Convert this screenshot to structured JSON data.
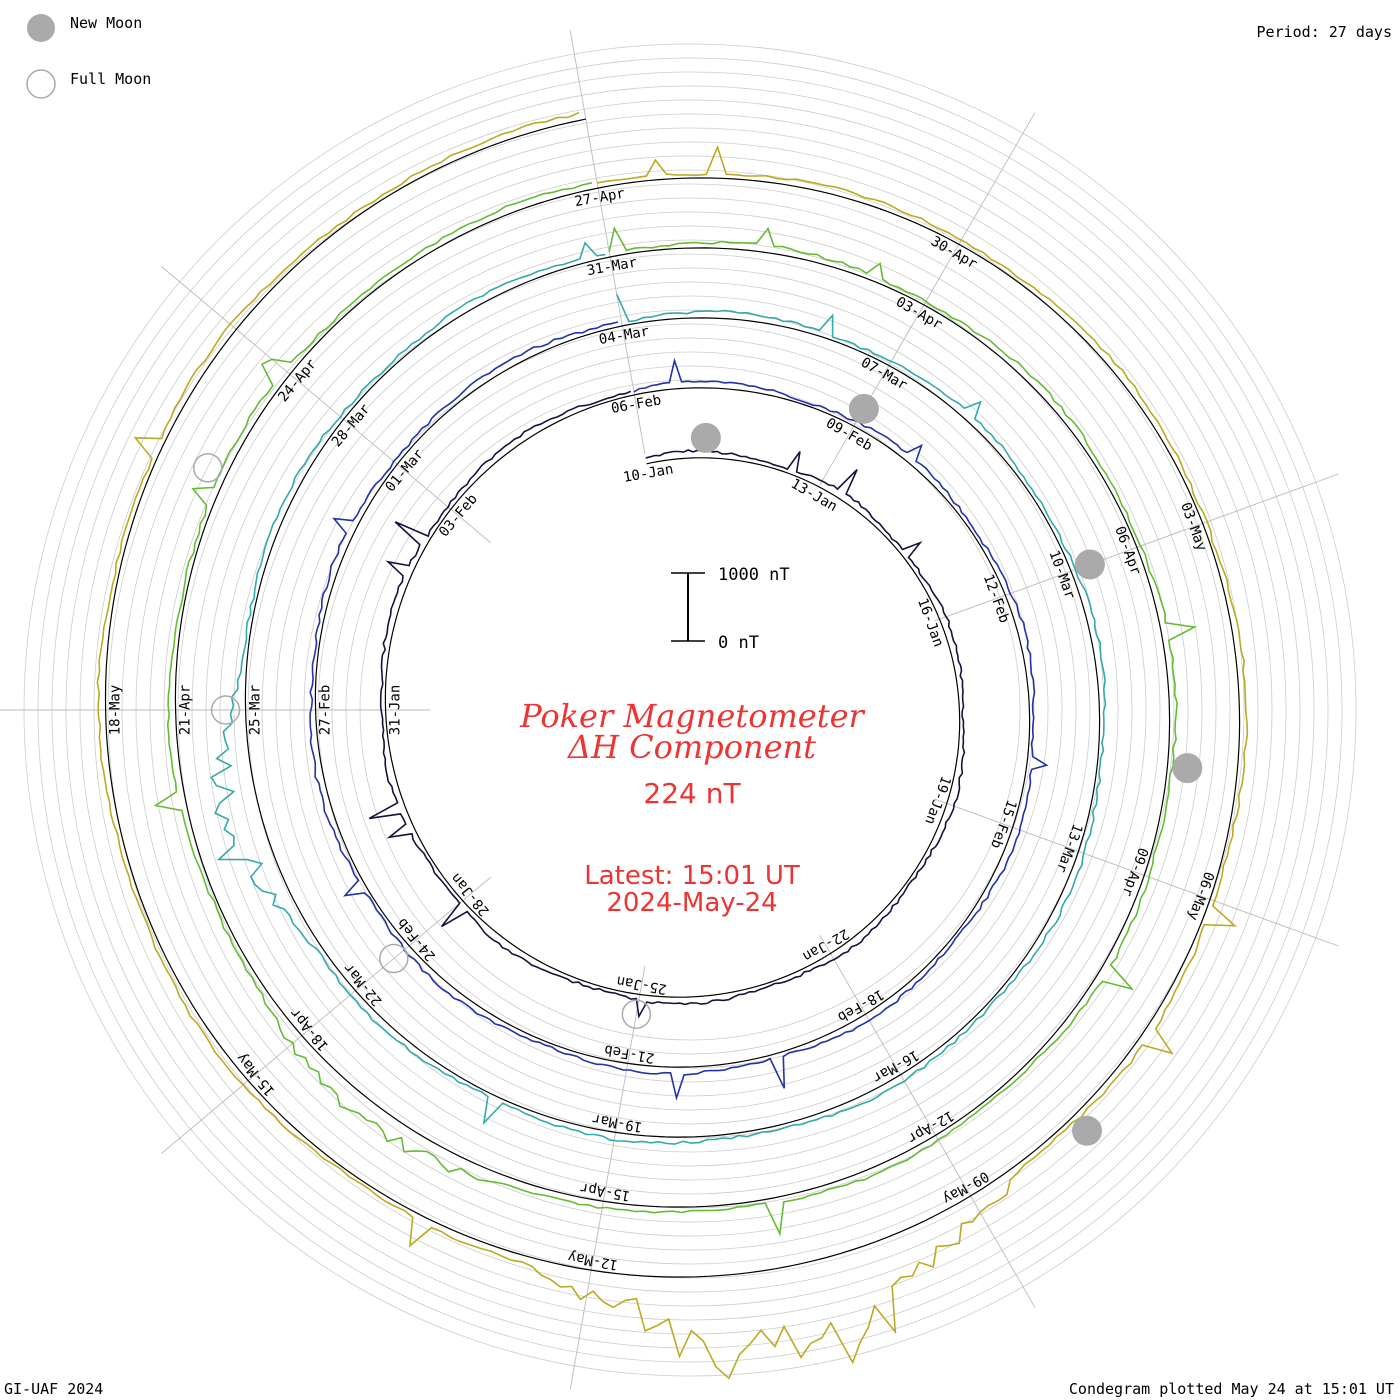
{
  "legend": {
    "new_moon_label": "New Moon",
    "full_moon_label": "Full Moon",
    "new_moon_color": "#aaaaaa",
    "full_moon_color": "#aaaaaa"
  },
  "period_label": "Period: 27 days",
  "scale_bar": {
    "top_label": "1000 nT",
    "bottom_label": "0 nT"
  },
  "title": {
    "line1": "Poker Magnetometer",
    "line2": "ΔH Component",
    "value": "224 nT",
    "latest_time": "Latest: 15:01 UT",
    "latest_date": "2024-May-24",
    "color": "#ee3333"
  },
  "footer": {
    "left": "GI-UAF 2024",
    "right": "Condegram plotted May 24 at 15:01 UT"
  },
  "chart_data": {
    "type": "line",
    "title": "Poker Magnetometer ΔH Component",
    "period_days": 27,
    "scale_nT": [
      0,
      1000
    ],
    "latest_value_nT": 224,
    "date_labels": [
      [
        "10-Jan",
        "13-Jan",
        "16-Jan",
        "19-Jan",
        "22-Jan",
        "25-Jan",
        "28-Jan",
        "31-Jan",
        "03-Feb"
      ],
      [
        "06-Feb",
        "09-Feb",
        "12-Feb",
        "15-Feb",
        "18-Feb",
        "21-Feb",
        "24-Feb",
        "27-Feb",
        "01-Mar"
      ],
      [
        "04-Mar",
        "07-Mar",
        "10-Mar",
        "13-Mar",
        "16-Mar",
        "19-Mar",
        "22-Mar",
        "25-Mar",
        "28-Mar"
      ],
      [
        "31-Mar",
        "03-Apr",
        "06-Apr",
        "09-Apr",
        "12-Apr",
        "15-Apr",
        "18-Apr",
        "21-Apr",
        "24-Apr"
      ],
      [
        "27-Apr",
        "30-Apr",
        "03-May",
        "06-May",
        "09-May",
        "12-May",
        "15-May",
        "18-May"
      ]
    ],
    "series_colors": [
      "#1a1040",
      "#2233aa",
      "#33aaaa",
      "#66bb33",
      "#bbaa22",
      "#cc4411",
      "#bb1111"
    ],
    "new_moons": [
      "11-Jan",
      "09-Feb",
      "10-Mar",
      "08-Apr",
      "08-May"
    ],
    "full_moons": [
      "25-Jan",
      "24-Feb",
      "25-Mar",
      "23-Apr"
    ],
    "storm_events": [
      {
        "date": "10-May",
        "peak_nT": 1000
      },
      {
        "date": "11-May",
        "peak_nT": 1000
      },
      {
        "date": "24-Mar",
        "peak_nT": 500
      },
      {
        "date": "17-Apr",
        "peak_nT": 300
      }
    ]
  }
}
